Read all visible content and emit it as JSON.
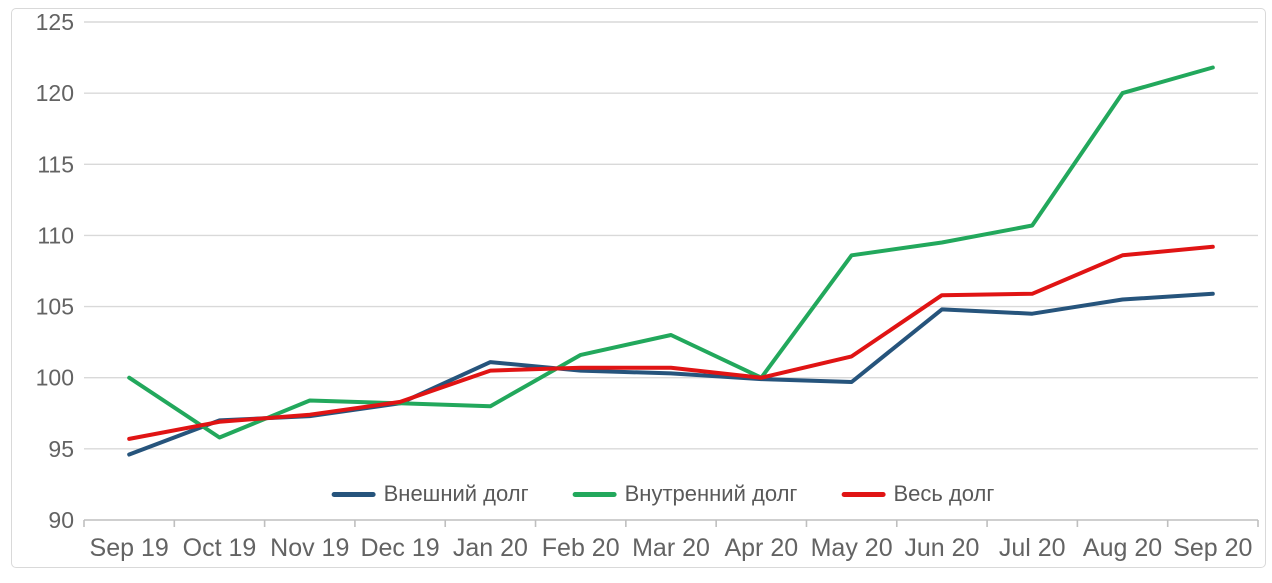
{
  "chart_data": {
    "type": "line",
    "title": "",
    "xlabel": "",
    "ylabel": "",
    "categories": [
      "Sep 19",
      "Oct 19",
      "Nov 19",
      "Dec 19",
      "Jan 20",
      "Feb 20",
      "Mar 20",
      "Apr 20",
      "May 20",
      "Jun 20",
      "Jul 20",
      "Aug 20",
      "Sep 20"
    ],
    "series": [
      {
        "name": "Внешний долг",
        "color": "#26547c",
        "values": [
          94.6,
          97.0,
          97.3,
          98.2,
          101.1,
          100.5,
          100.3,
          99.9,
          99.7,
          104.8,
          104.5,
          105.5,
          105.9
        ]
      },
      {
        "name": "Внутренний долг",
        "color": "#22a85c",
        "values": [
          100.0,
          95.8,
          98.4,
          98.2,
          98.0,
          101.6,
          103.0,
          100.0,
          108.6,
          109.5,
          110.7,
          120.0,
          121.8
        ]
      },
      {
        "name": "Весь долг",
        "color": "#e01414",
        "values": [
          95.7,
          96.9,
          97.4,
          98.3,
          100.5,
          100.7,
          100.7,
          100.0,
          101.5,
          105.8,
          105.9,
          108.6,
          109.2
        ]
      }
    ],
    "ylim": [
      90,
      125
    ],
    "yticks": [
      90,
      95,
      100,
      105,
      110,
      115,
      120,
      125
    ],
    "grid": "horizontal",
    "legend_position": "bottom-inside-center",
    "colors": {
      "gridline": "#d9d9d9",
      "axis_line": "#bfbfbf",
      "tick_label": "#636363",
      "legend_text": "#595959",
      "frame_border": "#d9d9d9",
      "background": "#ffffff"
    }
  }
}
